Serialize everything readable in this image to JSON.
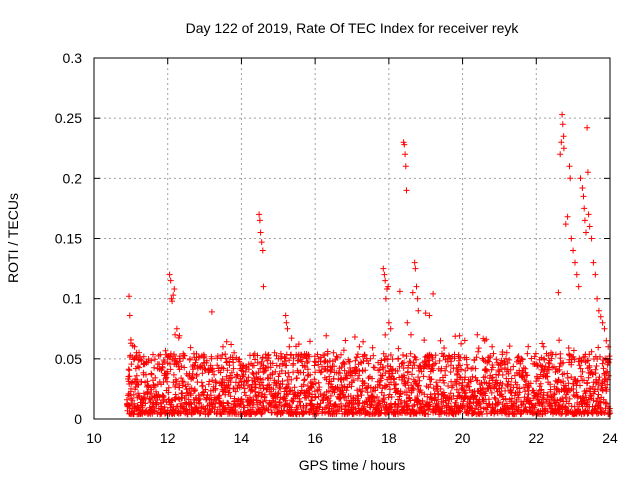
{
  "chart_data": {
    "type": "scatter",
    "title": "Day 122 of 2019, Rate Of TEC Index for receiver reyk",
    "xlabel": "GPS time / hours",
    "ylabel": "ROTI / TECUs",
    "xlim": [
      10,
      24
    ],
    "ylim": [
      0,
      0.3
    ],
    "xticks": [
      10,
      12,
      14,
      16,
      18,
      20,
      22,
      24
    ],
    "yticks": [
      0,
      0.05,
      0.1,
      0.15,
      0.2,
      0.25,
      0.3
    ],
    "xtick_labels": [
      "10",
      "12",
      "14",
      "16",
      "18",
      "20",
      "22",
      "24"
    ],
    "ytick_labels": [
      "0",
      "0.05",
      "0.1",
      "0.15",
      "0.2",
      "0.25",
      "0.3"
    ],
    "grid": true,
    "marker": "plus",
    "color": "#ff0000",
    "series": [
      {
        "name": "ROTI",
        "generated_background": {
          "x_start": 10.9,
          "x_end": 24.0,
          "step": 0.02,
          "baseline_min": 0.004,
          "baseline_max": 0.04,
          "seed": 122
        },
        "points": [
          [
            10.95,
            0.102
          ],
          [
            10.97,
            0.086
          ],
          [
            11.0,
            0.063
          ],
          [
            11.05,
            0.061
          ],
          [
            11.1,
            0.06
          ],
          [
            11.15,
            0.055
          ],
          [
            12.05,
            0.12
          ],
          [
            12.08,
            0.115
          ],
          [
            12.1,
            0.1
          ],
          [
            12.12,
            0.098
          ],
          [
            12.15,
            0.103
          ],
          [
            12.18,
            0.108
          ],
          [
            12.2,
            0.07
          ],
          [
            12.25,
            0.075
          ],
          [
            13.2,
            0.089
          ],
          [
            13.5,
            0.06
          ],
          [
            13.8,
            0.055
          ],
          [
            14.48,
            0.17
          ],
          [
            14.5,
            0.165
          ],
          [
            14.52,
            0.155
          ],
          [
            14.55,
            0.147
          ],
          [
            14.58,
            0.14
          ],
          [
            14.6,
            0.11
          ],
          [
            14.9,
            0.055
          ],
          [
            15.0,
            0.05
          ],
          [
            15.2,
            0.086
          ],
          [
            15.22,
            0.08
          ],
          [
            15.25,
            0.075
          ],
          [
            15.3,
            0.06
          ],
          [
            16.1,
            0.05
          ],
          [
            16.5,
            0.055
          ],
          [
            17.2,
            0.06
          ],
          [
            17.5,
            0.05
          ],
          [
            17.85,
            0.125
          ],
          [
            17.88,
            0.12
          ],
          [
            17.9,
            0.115
          ],
          [
            17.92,
            0.1
          ],
          [
            17.95,
            0.108
          ],
          [
            17.98,
            0.11
          ],
          [
            18.0,
            0.08
          ],
          [
            18.05,
            0.075
          ],
          [
            18.4,
            0.23
          ],
          [
            18.42,
            0.228
          ],
          [
            18.44,
            0.22
          ],
          [
            18.46,
            0.21
          ],
          [
            18.48,
            0.19
          ],
          [
            18.5,
            0.08
          ],
          [
            18.3,
            0.106
          ],
          [
            18.6,
            0.07
          ],
          [
            18.65,
            0.105
          ],
          [
            18.7,
            0.13
          ],
          [
            18.72,
            0.125
          ],
          [
            18.75,
            0.11
          ],
          [
            18.78,
            0.1
          ],
          [
            18.8,
            0.09
          ],
          [
            19.0,
            0.088
          ],
          [
            19.1,
            0.086
          ],
          [
            19.2,
            0.104
          ],
          [
            19.4,
            0.065
          ],
          [
            19.6,
            0.05
          ],
          [
            20.4,
            0.07
          ],
          [
            20.6,
            0.065
          ],
          [
            20.8,
            0.06
          ],
          [
            21.2,
            0.055
          ],
          [
            21.6,
            0.05
          ],
          [
            22.2,
            0.06
          ],
          [
            22.4,
            0.055
          ],
          [
            22.6,
            0.105
          ],
          [
            22.65,
            0.22
          ],
          [
            22.68,
            0.23
          ],
          [
            22.7,
            0.253
          ],
          [
            22.72,
            0.245
          ],
          [
            22.74,
            0.235
          ],
          [
            22.75,
            0.225
          ],
          [
            22.8,
            0.162
          ],
          [
            22.85,
            0.168
          ],
          [
            22.9,
            0.21
          ],
          [
            22.92,
            0.2
          ],
          [
            22.95,
            0.15
          ],
          [
            23.0,
            0.14
          ],
          [
            23.05,
            0.13
          ],
          [
            23.1,
            0.12
          ],
          [
            23.15,
            0.11
          ],
          [
            23.2,
            0.2
          ],
          [
            23.25,
            0.192
          ],
          [
            23.28,
            0.185
          ],
          [
            23.3,
            0.175
          ],
          [
            23.32,
            0.165
          ],
          [
            23.35,
            0.155
          ],
          [
            23.38,
            0.242
          ],
          [
            23.4,
            0.205
          ],
          [
            23.42,
            0.17
          ],
          [
            23.45,
            0.16
          ],
          [
            23.5,
            0.15
          ],
          [
            23.55,
            0.13
          ],
          [
            23.6,
            0.12
          ],
          [
            23.65,
            0.1
          ],
          [
            23.7,
            0.09
          ],
          [
            23.75,
            0.085
          ],
          [
            23.8,
            0.08
          ],
          [
            23.85,
            0.075
          ],
          [
            23.9,
            0.065
          ],
          [
            23.95,
            0.06
          ]
        ]
      }
    ]
  }
}
